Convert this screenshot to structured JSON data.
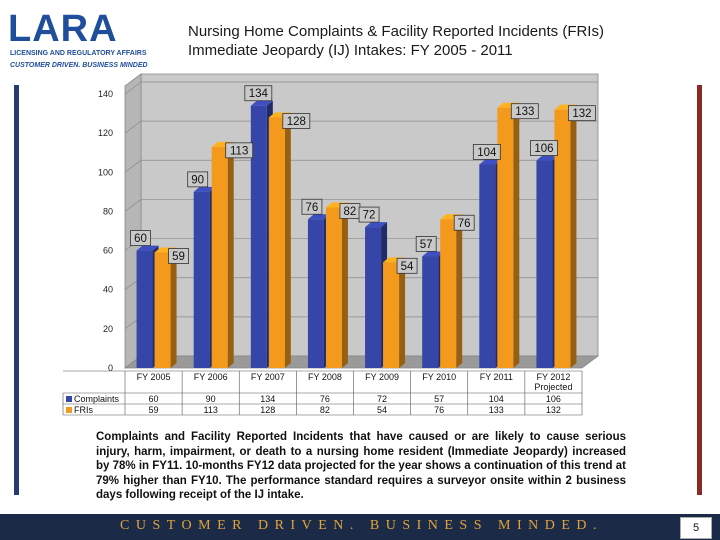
{
  "logo": {
    "word": "LARA",
    "line1": "LICENSING AND REGULATORY AFFAIRS",
    "line2": "CUSTOMER DRIVEN. BUSINESS MINDED"
  },
  "title": {
    "line1": "Nursing Home Complaints & Facility Reported Incidents (FRIs)",
    "line2": "Immediate Jeopardy (IJ) Intakes:  FY 2005 - 2011"
  },
  "colors": {
    "complaints": "#3545a8",
    "fris": "#f39a1c",
    "wall": "#c9c9c9",
    "footer": "#1b2a47",
    "slogan": "#e3a43a",
    "side_bar_left": "#243c73",
    "side_bar_right": "#8b2a24"
  },
  "chart_data": {
    "type": "bar",
    "categories": [
      "FY 2005",
      "FY 2006",
      "FY 2007",
      "FY 2008",
      "FY 2009",
      "FY 2010",
      "FY  2011",
      "FY 2012"
    ],
    "category_note": {
      "index": 7,
      "text": "Projected"
    },
    "series": [
      {
        "name": "Complaints",
        "values": [
          60,
          90,
          134,
          76,
          72,
          57,
          104,
          106
        ]
      },
      {
        "name": "FRIs",
        "values": [
          59,
          113,
          128,
          82,
          54,
          76,
          133,
          132
        ]
      }
    ],
    "ylim": [
      0,
      140
    ],
    "yticks": [
      0,
      20,
      40,
      60,
      80,
      100,
      120,
      140
    ],
    "grid": true,
    "legend": "data-table-bottom"
  },
  "caption": "Complaints and Facility Reported Incidents that have caused or are likely to cause serious injury, harm, impairment, or death to a nursing home resident (Immediate Jeopardy) increased by 78% in FY11. 10-months FY12 data projected for the year shows a continuation of this trend at 79% higher than FY10. The performance standard requires a surveyor onsite within 2 business days following receipt of the IJ intake.",
  "footer": {
    "slogan": "CUSTOMER DRIVEN. BUSINESS MINDED.",
    "page_number": "5"
  }
}
